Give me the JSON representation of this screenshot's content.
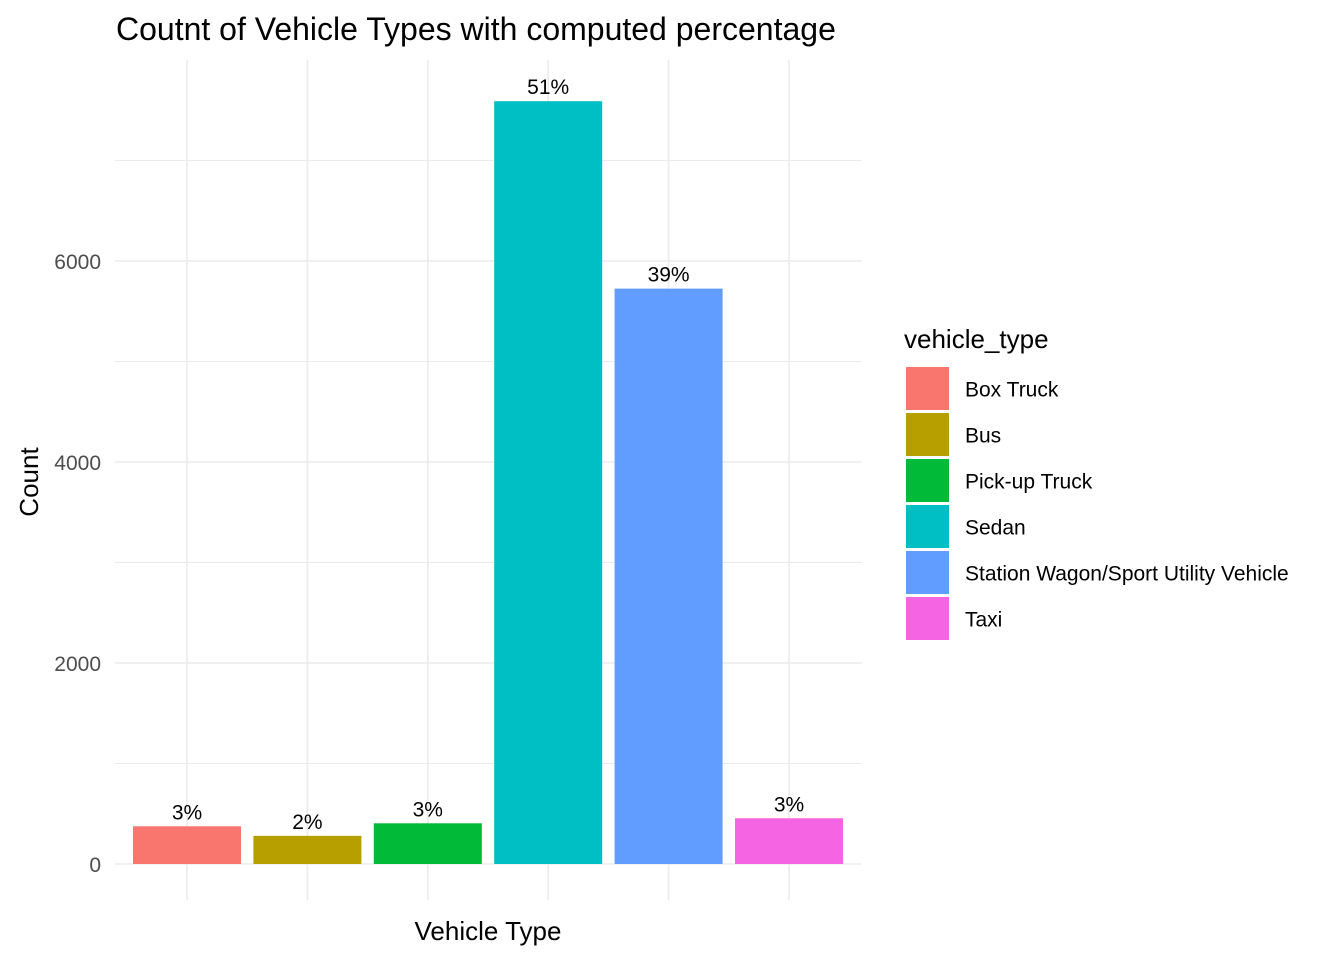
{
  "chart_data": {
    "type": "bar",
    "title": "Coutnt of Vehicle Types with computed percentage",
    "xlabel": "Vehicle Type",
    "ylabel": "Count",
    "ylim": [
      0,
      7600
    ],
    "y_ticks": [
      0,
      2000,
      4000,
      6000
    ],
    "categories": [
      "Box Truck",
      "Bus",
      "Pick-up Truck",
      "Sedan",
      "Station Wagon/Sport Utility Vehicle",
      "Taxi"
    ],
    "values": [
      375,
      280,
      405,
      7590,
      5725,
      455
    ],
    "data_labels": [
      "3%",
      "2%",
      "3%",
      "51%",
      "39%",
      "3%"
    ],
    "colors": [
      "#F8766D",
      "#B79F00",
      "#00BA38",
      "#00BFC4",
      "#619CFF",
      "#F564E3"
    ],
    "grid": true,
    "x_tick_labels_shown": false,
    "legend": {
      "title": "vehicle_type",
      "position": "right",
      "entries": [
        "Box Truck",
        "Bus",
        "Pick-up Truck",
        "Sedan",
        "Station Wagon/Sport Utility Vehicle",
        "Taxi"
      ]
    }
  }
}
